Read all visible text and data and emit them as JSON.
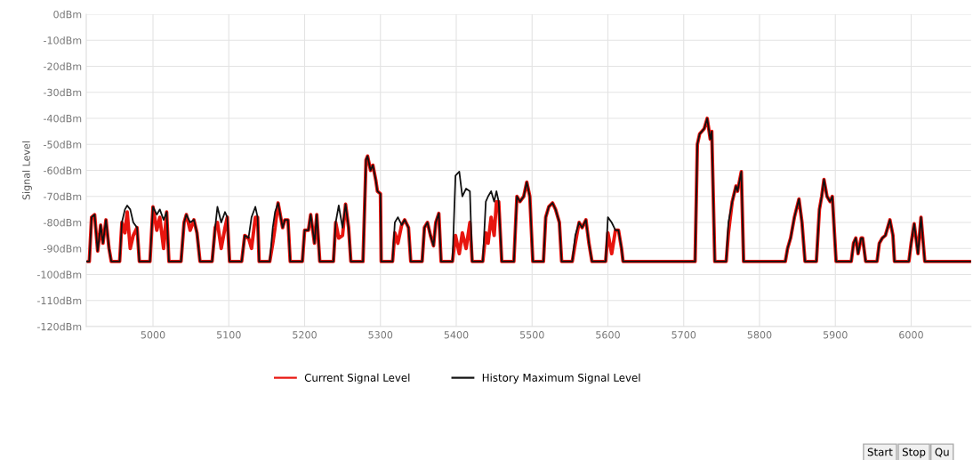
{
  "chart_data": {
    "type": "line",
    "ylabel": "Signal Level",
    "x": [
      4912,
      4916,
      4919,
      4923,
      4927,
      4931,
      4934,
      4938,
      4942,
      4945,
      4956,
      4959,
      4963,
      4966,
      4970,
      4974,
      4979,
      4982,
      4996,
      5000,
      5005,
      5009,
      5014,
      5018,
      5021,
      5037,
      5041,
      5044,
      5049,
      5054,
      5058,
      5062,
      5078,
      5082,
      5085,
      5090,
      5095,
      5098,
      5101,
      5117,
      5121,
      5126,
      5130,
      5135,
      5138,
      5140,
      5154,
      5158,
      5161,
      5165,
      5171,
      5174,
      5178,
      5181,
      5197,
      5200,
      5205,
      5208,
      5213,
      5216,
      5220,
      5238,
      5241,
      5245,
      5250,
      5254,
      5258,
      5261,
      5277,
      5281,
      5283,
      5287,
      5290,
      5294,
      5296,
      5300,
      5301,
      5316,
      5319,
      5323,
      5328,
      5332,
      5337,
      5340,
      5355,
      5358,
      5362,
      5366,
      5370,
      5373,
      5377,
      5380,
      5395,
      5399,
      5404,
      5408,
      5413,
      5418,
      5421,
      5435,
      5439,
      5442,
      5446,
      5450,
      5453,
      5456,
      5460,
      5476,
      5480,
      5484,
      5489,
      5493,
      5497,
      5501,
      5515,
      5518,
      5522,
      5527,
      5531,
      5536,
      5539,
      5553,
      5557,
      5562,
      5566,
      5571,
      5575,
      5579,
      5597,
      5600,
      5605,
      5610,
      5614,
      5618,
      5620,
      5715,
      5718,
      5721,
      5727,
      5731,
      5735,
      5737,
      5741,
      5756,
      5759,
      5764,
      5769,
      5771,
      5776,
      5779,
      5834,
      5837,
      5841,
      5846,
      5852,
      5856,
      5860,
      5875,
      5879,
      5882,
      5885,
      5889,
      5893,
      5896,
      5901,
      5921,
      5924,
      5927,
      5930,
      5934,
      5936,
      5940,
      5955,
      5958,
      5962,
      5966,
      5972,
      5976,
      5978,
      5997,
      6000,
      6004,
      6009,
      6013,
      6018,
      6079
    ],
    "series": [
      {
        "name": "Current Signal Level",
        "color": "#e8150f",
        "values": [
          -95,
          -95,
          -78,
          -77,
          -91,
          -81,
          -88,
          -79,
          -90,
          -95,
          -95,
          -80,
          -84,
          -76,
          -90,
          -85,
          -82,
          -95,
          -95,
          -74,
          -83,
          -78,
          -90,
          -76,
          -95,
          -95,
          -80,
          -77,
          -83,
          -79,
          -84,
          -95,
          -95,
          -82,
          -80,
          -90,
          -82,
          -78,
          -95,
          -95,
          -85,
          -86,
          -90,
          -78,
          -78,
          -95,
          -95,
          -88,
          -82,
          -72.5,
          -82,
          -79,
          -79,
          -95,
          -95,
          -83,
          -83,
          -77,
          -88,
          -77,
          -95,
          -95,
          -80,
          -86,
          -85,
          -73,
          -82,
          -95,
          -95,
          -56,
          -54.5,
          -60,
          -58,
          -64,
          -68,
          -69,
          -95,
          -95,
          -84,
          -88,
          -81,
          -79,
          -82,
          -95,
          -95,
          -82,
          -80,
          -85,
          -89,
          -80,
          -76.5,
          -95,
          -95,
          -85,
          -92,
          -84,
          -90,
          -80,
          -95,
          -95,
          -84,
          -88,
          -78,
          -85,
          -72,
          -72,
          -95,
          -95,
          -70,
          -72,
          -70,
          -64.5,
          -70,
          -95,
          -95,
          -78,
          -74,
          -72.5,
          -75,
          -80,
          -95,
          -95,
          -88,
          -80,
          -82,
          -79,
          -88,
          -95,
          -95,
          -84,
          -92,
          -83,
          -83,
          -90,
          -95,
          -95,
          -50,
          -46,
          -44,
          -40,
          -48,
          -45,
          -95,
          -95,
          -84,
          -72,
          -66,
          -68,
          -60.5,
          -95,
          -95,
          -90,
          -86,
          -78,
          -71,
          -80,
          -95,
          -95,
          -75,
          -70,
          -63.5,
          -70,
          -72,
          -70,
          -95,
          -95,
          -88,
          -86,
          -92,
          -86,
          -86,
          -95,
          -95,
          -88,
          -86,
          -85,
          -79,
          -85,
          -95,
          -95,
          -88,
          -80.5,
          -92,
          -78,
          -95,
          -95
        ]
      },
      {
        "name": "History Maximum Signal Level",
        "color": "#111111",
        "values": [
          -95,
          -95,
          -78,
          -77,
          -91,
          -81,
          -88,
          -79,
          -90,
          -95,
          -95,
          -80,
          -75,
          -73.5,
          -75,
          -80,
          -82,
          -95,
          -95,
          -74,
          -77,
          -75,
          -79,
          -76,
          -95,
          -95,
          -80,
          -77,
          -80,
          -79,
          -84,
          -95,
          -95,
          -82,
          -74,
          -80,
          -76,
          -78,
          -95,
          -95,
          -85,
          -86,
          -78,
          -74,
          -78,
          -95,
          -95,
          -82,
          -76,
          -72.5,
          -82,
          -79,
          -79,
          -95,
          -95,
          -83,
          -83,
          -77,
          -88,
          -77,
          -95,
          -95,
          -80,
          -73.5,
          -82,
          -73,
          -82,
          -95,
          -95,
          -56,
          -54.5,
          -60,
          -58,
          -64,
          -68,
          -69,
          -95,
          -95,
          -80,
          -78,
          -81,
          -79,
          -82,
          -95,
          -95,
          -82,
          -80,
          -85,
          -89,
          -80,
          -76.5,
          -95,
          -95,
          -62,
          -60.5,
          -70,
          -67,
          -68,
          -95,
          -95,
          -72,
          -70,
          -68,
          -72,
          -68,
          -72,
          -95,
          -95,
          -70,
          -72,
          -70,
          -64.5,
          -70,
          -95,
          -95,
          -78,
          -74,
          -72.5,
          -75,
          -80,
          -95,
          -95,
          -85,
          -80,
          -82,
          -79,
          -88,
          -95,
          -95,
          -78,
          -80,
          -83,
          -83,
          -90,
          -95,
          -95,
          -50,
          -46,
          -44,
          -40,
          -48,
          -45,
          -95,
          -95,
          -80,
          -72,
          -66,
          -68,
          -60.5,
          -95,
          -95,
          -90,
          -86,
          -78,
          -71,
          -80,
          -95,
          -95,
          -75,
          -70,
          -63.5,
          -70,
          -72,
          -70,
          -95,
          -95,
          -88,
          -86,
          -92,
          -86,
          -86,
          -95,
          -95,
          -88,
          -86,
          -85,
          -79,
          -85,
          -95,
          -95,
          -88,
          -80.5,
          -92,
          -78,
          -95,
          -95
        ]
      }
    ],
    "xlim": [
      4912,
      6079
    ],
    "xticks": [
      5000,
      5100,
      5200,
      5300,
      5400,
      5500,
      5600,
      5700,
      5800,
      5900,
      6000
    ],
    "ylim": [
      -120,
      0
    ],
    "yticks": [
      {
        "value": 0,
        "label": "0dBm"
      },
      {
        "value": -10,
        "label": "-10dBm"
      },
      {
        "value": -20,
        "label": "-20dBm"
      },
      {
        "value": -30,
        "label": "-30dBm"
      },
      {
        "value": -40,
        "label": "-40dBm"
      },
      {
        "value": -50,
        "label": "-50dBm"
      },
      {
        "value": -60,
        "label": "-60dBm"
      },
      {
        "value": -70,
        "label": "-70dBm"
      },
      {
        "value": -80,
        "label": "-80dBm"
      },
      {
        "value": -90,
        "label": "-90dBm"
      },
      {
        "value": -100,
        "label": "-100dBm"
      },
      {
        "value": -110,
        "label": "-110dBm"
      },
      {
        "value": -120,
        "label": "-120dBm"
      }
    ],
    "grid": true,
    "legend": "bottom",
    "line_style": "solid",
    "annotations": [
      "Start",
      "Stop",
      "Qu"
    ]
  }
}
